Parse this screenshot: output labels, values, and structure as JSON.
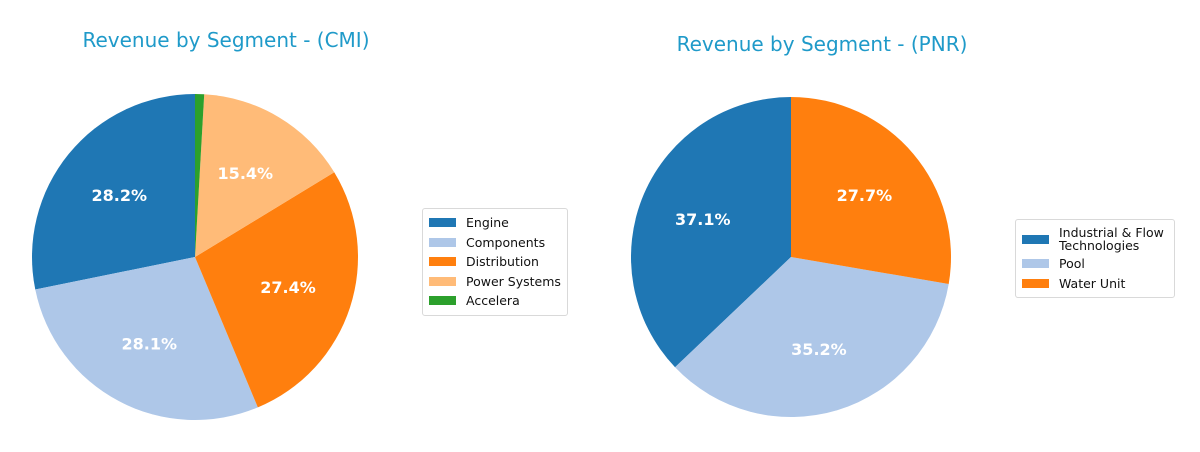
{
  "chart_data": [
    {
      "type": "pie",
      "title": "Revenue by Segment - (CMI)",
      "categories": [
        "Engine",
        "Components",
        "Distribution",
        "Power Systems",
        "Accelera"
      ],
      "values": [
        28.2,
        28.1,
        27.4,
        15.4,
        0.9
      ],
      "labels": [
        "28.2%",
        "28.1%",
        "27.4%",
        "15.4%",
        ""
      ],
      "colors": [
        "#1f77b4",
        "#aec7e8",
        "#ff7f0e",
        "#ffbb78",
        "#2ca02c"
      ],
      "start_angle": 90,
      "direction": "counterclockwise",
      "legend_position": "right"
    },
    {
      "type": "pie",
      "title": "Revenue by Segment - (PNR)",
      "categories": [
        "Industrial & Flow Technologies",
        "Pool",
        "Water Unit"
      ],
      "values": [
        37.1,
        35.2,
        27.7
      ],
      "labels": [
        "37.1%",
        "35.2%",
        "27.7%"
      ],
      "colors": [
        "#1f77b4",
        "#aec7e8",
        "#ff7f0e"
      ],
      "start_angle": 90,
      "direction": "counterclockwise",
      "legend_position": "right"
    }
  ],
  "charts": {
    "cmi": {
      "title": "Revenue by Segment - (CMI)",
      "legend": [
        "Engine",
        "Components",
        "Distribution",
        "Power Systems",
        "Accelera"
      ]
    },
    "pnr": {
      "title": "Revenue by Segment - (PNR)",
      "legend": [
        "Industrial & Flow Technologies",
        "Pool",
        "Water Unit"
      ],
      "legend_line1": "Industrial & Flow",
      "legend_line2": "Technologies"
    }
  }
}
